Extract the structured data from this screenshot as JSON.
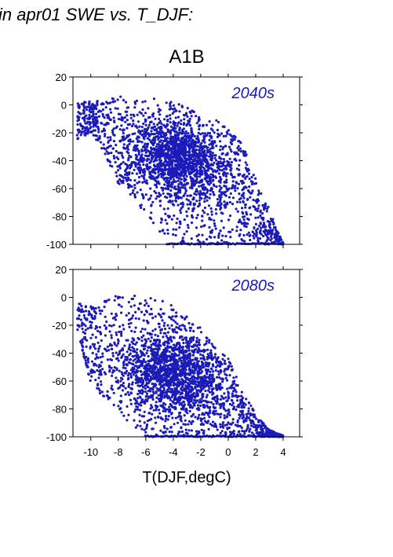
{
  "page": {
    "title": "in apr01 SWE vs. T_DJF:",
    "subtitle": "A1B",
    "xlabel": "T(DJF,degC)"
  },
  "colors": {
    "points": "#1b1bb8",
    "axis": "#000000",
    "era_label": "#1b1bb8"
  },
  "chart_data": [
    {
      "type": "scatter",
      "panel_label": "2040s",
      "xlim": [
        -11.3,
        5.2
      ],
      "ylim": [
        -100,
        20
      ],
      "yticks": [
        20,
        0,
        -20,
        -40,
        -60,
        -80,
        -100
      ],
      "xticks": [
        -10,
        -8,
        -6,
        -4,
        -2,
        0,
        2,
        4
      ],
      "show_xtick_labels": false,
      "cloud_envelope": [
        {
          "x": -11,
          "y_min": -26,
          "y_max": 1
        },
        {
          "x": -10,
          "y_min": -20,
          "y_max": 4
        },
        {
          "x": -9,
          "y_min": -34,
          "y_max": 5
        },
        {
          "x": -8,
          "y_min": -58,
          "y_max": 6
        },
        {
          "x": -7,
          "y_min": -68,
          "y_max": 5
        },
        {
          "x": -6,
          "y_min": -78,
          "y_max": 5
        },
        {
          "x": -5,
          "y_min": -92,
          "y_max": 4
        },
        {
          "x": -4,
          "y_min": -100,
          "y_max": 2
        },
        {
          "x": -3,
          "y_min": -100,
          "y_max": -2
        },
        {
          "x": -2,
          "y_min": -100,
          "y_max": -8
        },
        {
          "x": -1,
          "y_min": -100,
          "y_max": -10
        },
        {
          "x": 0,
          "y_min": -100,
          "y_max": -18
        },
        {
          "x": 1,
          "y_min": -100,
          "y_max": -28
        },
        {
          "x": 2,
          "y_min": -100,
          "y_max": -52
        },
        {
          "x": 3,
          "y_min": -100,
          "y_max": -75
        },
        {
          "x": 4,
          "y_min": -100,
          "y_max": -99
        }
      ],
      "dense_core": {
        "x_center": -3.5,
        "y_center": -28
      }
    },
    {
      "type": "scatter",
      "panel_label": "2080s",
      "xlim": [
        -11.3,
        5.2
      ],
      "ylim": [
        -100,
        20
      ],
      "yticks": [
        20,
        0,
        -20,
        -40,
        -60,
        -80,
        -100
      ],
      "xticks": [
        -10,
        -8,
        -6,
        -4,
        -2,
        0,
        2,
        4
      ],
      "xtick_labels": [
        "-10",
        "-8",
        "-6",
        "-4",
        "-2",
        "0",
        "2",
        "4"
      ],
      "show_xtick_labels": true,
      "cloud_envelope": [
        {
          "x": -11,
          "y_min": -24,
          "y_max": -4
        },
        {
          "x": -10,
          "y_min": -62,
          "y_max": -6
        },
        {
          "x": -9,
          "y_min": -72,
          "y_max": -2
        },
        {
          "x": -8,
          "y_min": -82,
          "y_max": 2
        },
        {
          "x": -7,
          "y_min": -92,
          "y_max": 2
        },
        {
          "x": -6,
          "y_min": -100,
          "y_max": 1
        },
        {
          "x": -5,
          "y_min": -100,
          "y_max": -1
        },
        {
          "x": -4,
          "y_min": -100,
          "y_max": -6
        },
        {
          "x": -3,
          "y_min": -100,
          "y_max": -14
        },
        {
          "x": -2,
          "y_min": -100,
          "y_max": -22
        },
        {
          "x": -1,
          "y_min": -100,
          "y_max": -36
        },
        {
          "x": 0,
          "y_min": -100,
          "y_max": -44
        },
        {
          "x": 1,
          "y_min": -100,
          "y_max": -66
        },
        {
          "x": 2,
          "y_min": -100,
          "y_max": -84
        },
        {
          "x": 3,
          "y_min": -100,
          "y_max": -95
        },
        {
          "x": 4,
          "y_min": -100,
          "y_max": -99
        }
      ],
      "dense_core": {
        "x_center": -4,
        "y_center": -55
      }
    }
  ]
}
